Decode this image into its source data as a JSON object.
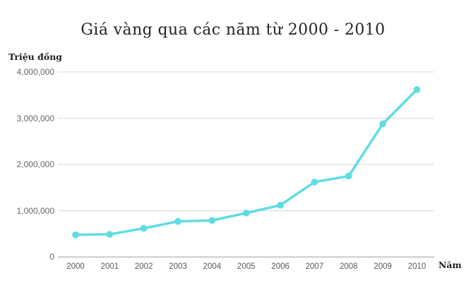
{
  "title": "Giá vàng qua các năm từ 2000 - 2010",
  "chart_data": {
    "type": "line",
    "title": "Giá vàng qua các năm từ 2000 - 2010",
    "categories": [
      "2000",
      "2001",
      "2002",
      "2003",
      "2004",
      "2005",
      "2006",
      "2007",
      "2008",
      "2009",
      "2010"
    ],
    "values": [
      480000,
      490000,
      620000,
      770000,
      790000,
      950000,
      1120000,
      1620000,
      1750000,
      2880000,
      3620000
    ],
    "xlabel": "Năm",
    "ylabel": "Triệu đồng",
    "ylim": [
      0,
      4000000
    ],
    "ytick_values": [
      0,
      1000000,
      2000000,
      3000000,
      4000000
    ],
    "ytick_labels": [
      "0",
      "1,000,000",
      "2,000,000",
      "3,000,000",
      "4,000,000"
    ],
    "grid": true,
    "legend_position": "none",
    "line_style": "solid-with-round-markers"
  },
  "colors": {
    "line": "#5FDCE2",
    "marker": "#5FDCE2",
    "gridline": "#d9d9d9",
    "zero_axis_line": "#9e9e9e",
    "tick_label": "#666666",
    "title_text": "#242424",
    "axis_title_text": "#1f1f1f",
    "background": "#ffffff"
  }
}
